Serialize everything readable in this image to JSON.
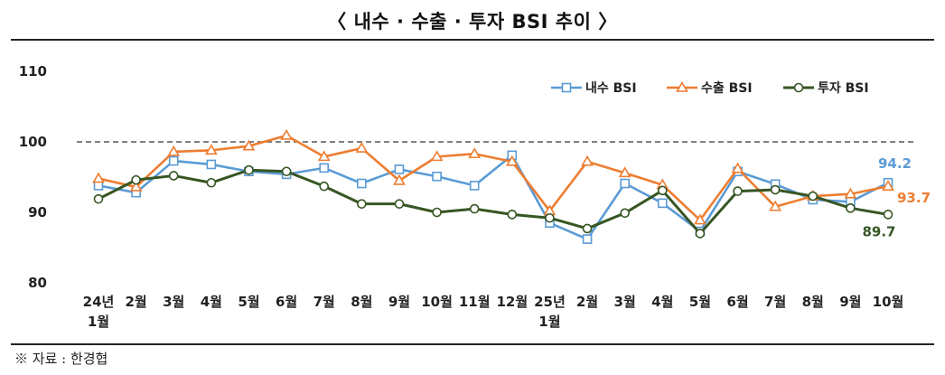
{
  "title": "〈 내수 · 수출 · 투자 BSI 추이 〉",
  "source": "※ 자료 : 한경협",
  "colors": {
    "domestic": "#5b9bd5",
    "export": "#ed7d31",
    "investment": "#375623",
    "reference": "#555555"
  },
  "chart_data": {
    "type": "line",
    "ylim": [
      80,
      110
    ],
    "yticks": [
      80,
      90,
      100,
      110
    ],
    "reference_line": 100,
    "grid": false,
    "legend_position": "top-right",
    "categories": [
      [
        "24년",
        "1월"
      ],
      [
        "2월"
      ],
      [
        "3월"
      ],
      [
        "4월"
      ],
      [
        "5월"
      ],
      [
        "6월"
      ],
      [
        "7월"
      ],
      [
        "8월"
      ],
      [
        "9월"
      ],
      [
        "10월"
      ],
      [
        "11월"
      ],
      [
        "12월"
      ],
      [
        "25년",
        "1월"
      ],
      [
        "2월"
      ],
      [
        "3월"
      ],
      [
        "4월"
      ],
      [
        "5월"
      ],
      [
        "6월"
      ],
      [
        "7월"
      ],
      [
        "8월"
      ],
      [
        "9월"
      ],
      [
        "10월"
      ]
    ],
    "series": [
      {
        "name": "내수 BSI",
        "key": "domestic",
        "marker": "square",
        "values": [
          93.8,
          92.8,
          97.3,
          96.8,
          95.8,
          95.4,
          96.3,
          94.1,
          96.1,
          95.1,
          93.8,
          98.1,
          88.5,
          86.2,
          94.1,
          91.3,
          87.3,
          95.8,
          94.0,
          91.8,
          91.5,
          94.2
        ]
      },
      {
        "name": "수출 BSI",
        "key": "export",
        "marker": "triangle",
        "values": [
          94.8,
          93.6,
          98.6,
          98.8,
          99.4,
          100.9,
          97.9,
          99.1,
          94.5,
          97.9,
          98.3,
          97.2,
          90.2,
          97.2,
          95.6,
          93.9,
          88.9,
          96.2,
          90.8,
          92.3,
          92.6,
          93.7
        ]
      },
      {
        "name": "투자 BSI",
        "key": "investment",
        "marker": "circle",
        "values": [
          91.9,
          94.6,
          95.2,
          94.2,
          96.0,
          95.8,
          93.7,
          91.2,
          91.2,
          90.0,
          90.5,
          89.7,
          89.2,
          87.7,
          89.9,
          93.1,
          87.0,
          93.0,
          93.2,
          92.3,
          90.6,
          89.7
        ]
      }
    ],
    "end_labels": {
      "domestic": "94.2",
      "export": "93.7",
      "investment": "89.7"
    }
  }
}
